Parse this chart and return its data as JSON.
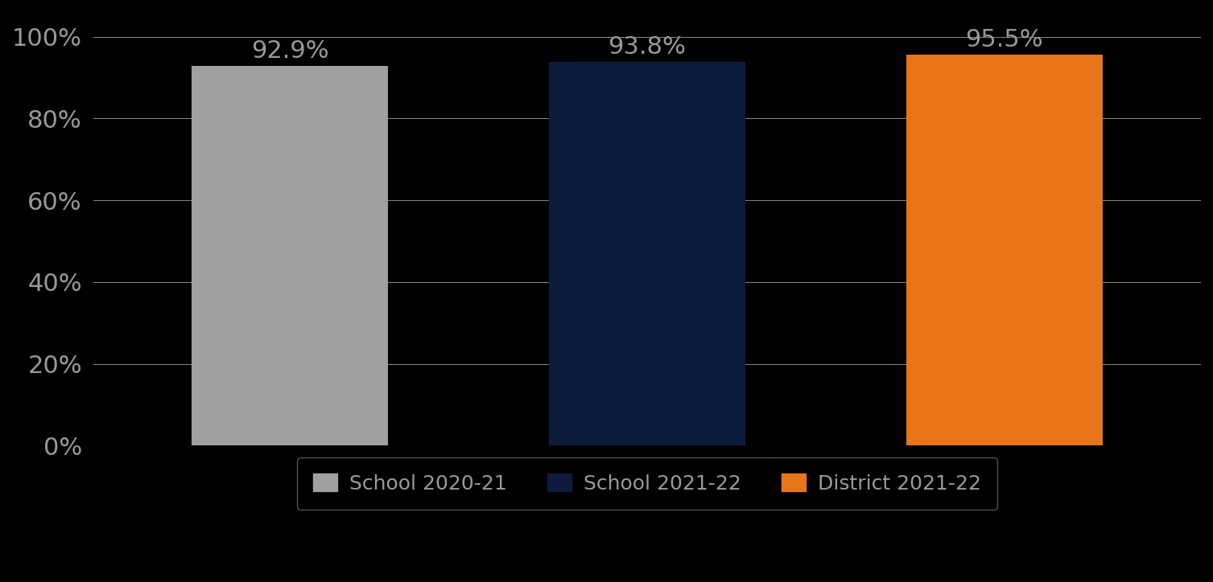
{
  "categories": [
    "School 2020-21",
    "School 2021-22",
    "District 2021-22"
  ],
  "values": [
    92.9,
    93.8,
    95.5
  ],
  "bar_colors": [
    "#A0A0A0",
    "#0D1B3E",
    "#E8751A"
  ],
  "value_labels": [
    "92.9%",
    "93.8%",
    "95.5%"
  ],
  "ylim": [
    0,
    100
  ],
  "yticks": [
    0,
    20,
    40,
    60,
    80,
    100
  ],
  "ytick_labels": [
    "0%",
    "20%",
    "40%",
    "60%",
    "80%",
    "100%"
  ],
  "background_color": "#000000",
  "text_color": "#999999",
  "grid_color": "#888888",
  "label_fontsize": 22,
  "tick_fontsize": 22,
  "legend_fontsize": 18,
  "bar_width": 0.55,
  "bar_positions": [
    1,
    2,
    3
  ]
}
